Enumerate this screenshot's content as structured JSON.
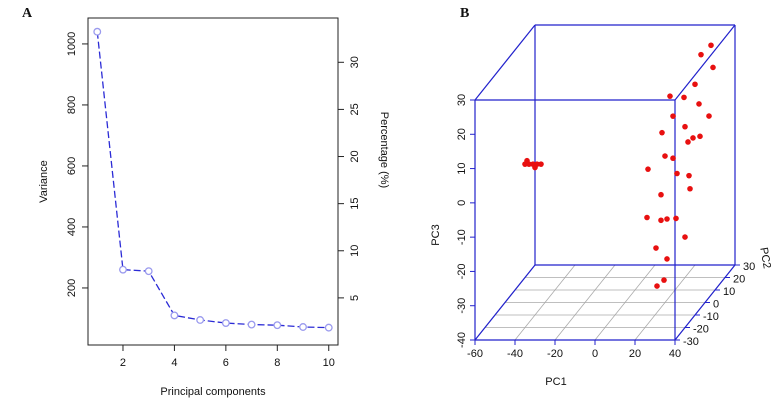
{
  "chart_data": [
    {
      "type": "line",
      "panel_label": "A",
      "x_label": "Principal components",
      "y_label": "Variance",
      "y2_label": "Percentage (%)",
      "x": [
        1,
        2,
        3,
        4,
        5,
        6,
        7,
        8,
        9,
        10
      ],
      "series": [
        {
          "color": "#2b2bd6",
          "marker_color": "#9a9aee",
          "values": [
            1040,
            260,
            255,
            110,
            95,
            85,
            80,
            78,
            72,
            70
          ]
        }
      ],
      "xlim": [
        0.64,
        10.36
      ],
      "xticks": [
        2,
        4,
        6,
        8,
        10
      ],
      "ylim": [
        13,
        1085
      ],
      "yticks": [
        200,
        400,
        600,
        800,
        1000
      ],
      "y2lim": [
        0,
        34.7
      ],
      "y2ticks": [
        5,
        10,
        15,
        20,
        25,
        30
      ]
    },
    {
      "type": "scatter3d",
      "panel_label": "B",
      "x_label": "PC1",
      "y_label": "PC2",
      "z_label": "PC3",
      "color": "#e81010",
      "xlim": [
        -60,
        40
      ],
      "xticks": [
        -60,
        -40,
        -20,
        0,
        20,
        40
      ],
      "ylim": [
        -30,
        30
      ],
      "yticks": [
        -30,
        -20,
        -10,
        0,
        10,
        20,
        30
      ],
      "zlim": [
        -40,
        30
      ],
      "zticks": [
        -40,
        -30,
        -20,
        -10,
        0,
        10,
        20,
        30
      ],
      "x": [
        -45,
        -43,
        -41,
        -39,
        -37,
        -44,
        -40,
        28,
        32,
        35,
        30,
        27,
        33,
        25,
        29,
        31,
        26,
        34,
        28,
        30,
        24,
        32,
        27,
        35,
        29,
        25,
        33,
        28,
        31,
        26,
        34,
        30,
        27,
        32,
        29,
        36,
        30
      ],
      "y": [
        -10,
        -10,
        -10,
        -10,
        -10,
        -10,
        -10,
        20,
        22,
        18,
        10,
        5,
        8,
        -5,
        -10,
        -2,
        -15,
        0,
        -8,
        -20,
        -25,
        -12,
        -18,
        -5,
        -22,
        -28,
        -15,
        -25,
        -20,
        -10,
        -8,
        -28,
        -15,
        0,
        5,
        12,
        15
      ],
      "z": [
        4,
        4,
        4,
        4,
        4,
        5,
        3,
        25,
        27,
        22,
        20,
        18,
        15,
        22,
        18,
        12,
        15,
        8,
        5,
        10,
        8,
        2,
        -2,
        -5,
        -8,
        -5,
        -10,
        -15,
        -20,
        -12,
        -18,
        -25,
        -28,
        -3,
        5,
        10,
        3
      ]
    }
  ]
}
